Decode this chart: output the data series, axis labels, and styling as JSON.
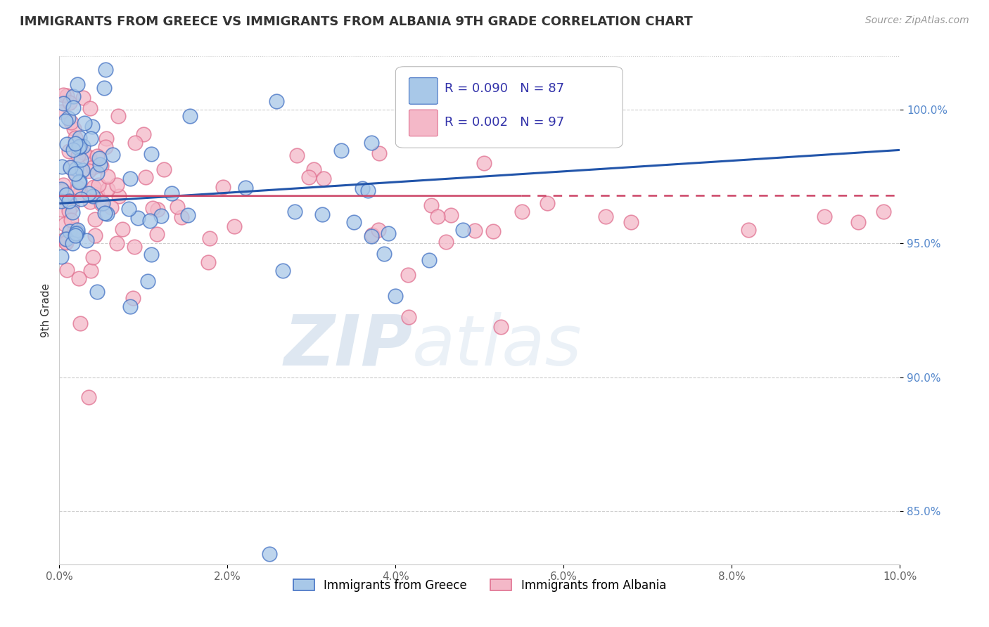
{
  "title": "IMMIGRANTS FROM GREECE VS IMMIGRANTS FROM ALBANIA 9TH GRADE CORRELATION CHART",
  "source": "Source: ZipAtlas.com",
  "ylabel": "9th Grade",
  "legend_label1": "Immigrants from Greece",
  "legend_label2": "Immigrants from Albania",
  "R1": "0.090",
  "N1": "87",
  "R2": "0.002",
  "N2": "97",
  "color1": "#a8c8e8",
  "color2": "#f4b8c8",
  "edge_color1": "#4472c4",
  "edge_color2": "#e07090",
  "line_color1": "#2255aa",
  "line_color2": "#cc4466",
  "background_color": "#ffffff",
  "xlim": [
    0.0,
    10.0
  ],
  "ylim": [
    83.0,
    102.0
  ],
  "ytick_vals": [
    85.0,
    90.0,
    95.0,
    100.0
  ],
  "ytick_labels": [
    "85.0%",
    "90.0%",
    "95.0%",
    "100.0%"
  ],
  "xtick_vals": [
    0.0,
    2.0,
    4.0,
    6.0,
    8.0,
    10.0
  ],
  "xtick_labels": [
    "0.0%",
    "2.0%",
    "4.0%",
    "6.0%",
    "8.0%",
    "10.0%"
  ],
  "watermark_zip": "ZIP",
  "watermark_atlas": "atlas",
  "title_fontsize": 13,
  "tick_color": "#5588cc",
  "ylabel_color": "#333333",
  "grid_color": "#cccccc"
}
